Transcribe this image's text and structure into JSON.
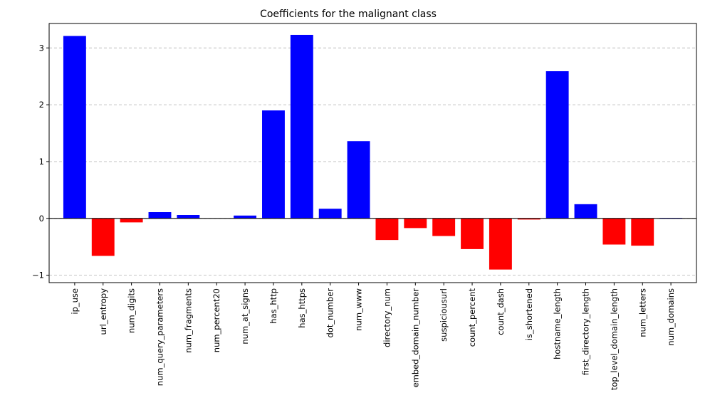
{
  "chart_data": {
    "type": "bar",
    "title": "Coefficients for the malignant class",
    "xlabel": "",
    "ylabel": "",
    "categories": [
      "ip_use",
      "url_entropy",
      "num_digits",
      "num_query_parameters",
      "num_fragments",
      "num_percent20",
      "num_at_signs",
      "has_http",
      "has_https",
      "dot_number",
      "num_www",
      "directory_num",
      "embed_domain_number",
      "suspiciousurl",
      "count_percent",
      "count_dash",
      "is_shortened",
      "hostname_length",
      "first_directory_length",
      "top_level_domain_length",
      "num_letters",
      "num_domains"
    ],
    "values": [
      3.21,
      -0.66,
      -0.07,
      0.11,
      0.06,
      0.0,
      0.05,
      1.9,
      3.23,
      0.17,
      1.36,
      -0.38,
      -0.17,
      -0.31,
      -0.54,
      -0.9,
      -0.02,
      2.59,
      0.25,
      -0.46,
      -0.48,
      0.01
    ],
    "yticks": [
      -1,
      0,
      1,
      2,
      3
    ],
    "ylim": [
      -1.13,
      3.43
    ],
    "grid": "y",
    "zero_line": true,
    "colors": {
      "positive": "#0000ff",
      "negative": "#ff0000"
    }
  }
}
